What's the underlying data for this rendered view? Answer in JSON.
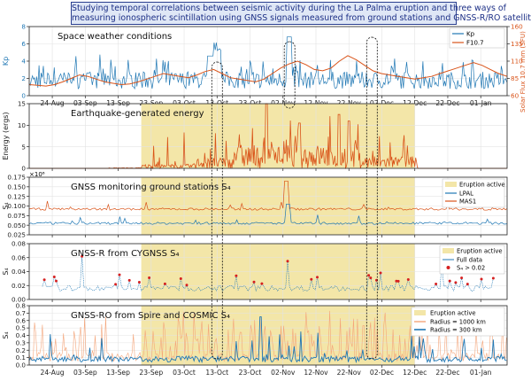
{
  "header": {
    "line1": "Studying temporal correlations between seismic activity during the La Palma eruption and three ways of",
    "line2": "measuring ionospheric scintillation using GNSS signals measured from ground stations and GNSS-R/RO satellite data"
  },
  "x_ticks": [
    "24-Aug",
    "03-Sep",
    "13-Sep",
    "23-Sep",
    "03-Oct",
    "13-Oct",
    "23-Oct",
    "02-Nov",
    "12-Nov",
    "22-Nov",
    "02-Dec",
    "12-Dec",
    "22-Dec",
    "01-Jan"
  ],
  "colors": {
    "blue": "#1f77b4",
    "orange": "#d9541a",
    "eruption": "#f3e6a8",
    "lightorange": "#f4a57a"
  },
  "chart_data": [
    {
      "type": "line",
      "title": "Space weather conditions",
      "ylabel": "Kp",
      "ylabel_right": "Solar Flux 10.7 mm (SFU)",
      "ylim": [
        0,
        8
      ],
      "yticks": [
        "0",
        "2",
        "4",
        "6",
        "8"
      ],
      "ylim_right": [
        60,
        160
      ],
      "yticks_right": [
        "60",
        "85",
        "110",
        "135",
        "160"
      ],
      "legend": [
        "Kp",
        "F10.7"
      ],
      "series": [
        {
          "name": "Kp",
          "values_note": "3-hourly index, typically 0.5-3, peaks near 6 (13-Oct) and 7 (04-Nov)"
        },
        {
          "name": "F10.7",
          "values": [
            76,
            75,
            74,
            76,
            80,
            85,
            90,
            88,
            84,
            80,
            78,
            76,
            77,
            80,
            84,
            88,
            92,
            90,
            88,
            86,
            90,
            95,
            98,
            92,
            86,
            84,
            82,
            80,
            84,
            92,
            100,
            106,
            110,
            105,
            98,
            96,
            100,
            110,
            118,
            112,
            104,
            96,
            92,
            90,
            88,
            86,
            84,
            86,
            88,
            92,
            96,
            100,
            104,
            108,
            104,
            98,
            92,
            88
          ]
        }
      ]
    },
    {
      "type": "bar",
      "title": "Earthquake-generated energy",
      "ylabel": "Energy (ergs)",
      "exponent_label": "×10⁶",
      "ylim": [
        0,
        15
      ],
      "yticks": [
        "0",
        "5",
        "10",
        "15"
      ],
      "series": [
        {
          "name": "Energy",
          "peak_value": 15,
          "peak_date": "~28-Oct"
        }
      ]
    },
    {
      "type": "line",
      "title": "GNSS monitoring ground stations S₄",
      "ylabel": "S₄",
      "ylim": [
        0.025,
        0.175
      ],
      "yticks": [
        "0.025",
        "0.050",
        "0.075",
        "0.100",
        "0.125",
        "0.150",
        "0.175"
      ],
      "legend": [
        "Eruption active",
        "LPAL",
        "MAS1"
      ],
      "series": [
        {
          "name": "LPAL",
          "baseline": 0.055
        },
        {
          "name": "MAS1",
          "baseline": 0.092
        }
      ]
    },
    {
      "type": "scatter",
      "title": "GNSS-R from CYGNSS S₄",
      "ylabel": "S₄",
      "ylim": [
        0,
        0.08
      ],
      "yticks": [
        "0.00",
        "0.02",
        "0.04",
        "0.06",
        "0.08"
      ],
      "legend": [
        "Eruption active",
        "Full data",
        "S₄ > 0.02"
      ],
      "threshold": 0.02
    },
    {
      "type": "bar",
      "title": "GNSS-RO from Spire and COSMIC S₄",
      "ylabel": "S₄",
      "ylim": [
        0,
        0.8
      ],
      "yticks": [
        "0.0",
        "0.1",
        "0.2",
        "0.3",
        "0.4",
        "0.5",
        "0.6",
        "0.7",
        "0.8"
      ],
      "legend": [
        "Eruption active",
        "Radius = 1000 km",
        "Radius = 300 km"
      ]
    }
  ]
}
